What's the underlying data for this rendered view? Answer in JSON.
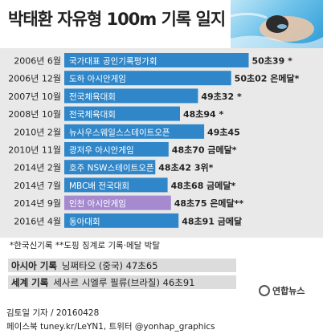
{
  "title": "박태환 자유형 100m 기록 일지",
  "chart_data": {
    "type": "bar",
    "orientation": "horizontal",
    "categories": [
      "2006년 6월",
      "2006년 12월",
      "2007년 10월",
      "2008년 10월",
      "2010년 2월",
      "2010년 11월",
      "2014년 2월",
      "2014년 7월",
      "2014년 9월",
      "2016년 4월"
    ],
    "events": [
      "국가대표 공인기록평가회",
      "도하 아시안게임",
      "전국체육대회",
      "전국체육대회",
      "뉴사우스웨일스스테이트오픈",
      "광저우 아시안게임",
      "호주 NSW스테이트오픈",
      "MBC배 전국대회",
      "인천 아시안게임",
      "동아대회"
    ],
    "values": [
      50.39,
      50.02,
      49.32,
      48.94,
      49.45,
      48.7,
      48.42,
      48.68,
      48.75,
      48.91
    ],
    "value_labels": [
      "50초39 *",
      "50초02 은메달*",
      "49초32 *",
      "48초94 *",
      "49초45",
      "48초70 금메달*",
      "48초42 3위*",
      "48초68 금메달*",
      "48초75 은메달**",
      "48초91 금메달"
    ],
    "highlight_index": 8,
    "colors": {
      "bar": "#2f86c9",
      "highlight": "#a58ad0",
      "background": "#e9e9e9"
    }
  },
  "footnote": "*한국신기록 **도핑 징계로 기록·메달 박탈",
  "records": [
    {
      "label": "아시아 기록",
      "value": "닝쩌타오 (중국) 47초65"
    },
    {
      "label": "세계 기록",
      "value": "세사르 시엘루 필류(브라질) 46초91"
    }
  ],
  "logo": "연합뉴스",
  "credit_line1": "김토일 기자 / 20160428",
  "credit_line2": "페이스북 tuney.kr/LeYN1, 트위터 @yonhap_graphics"
}
